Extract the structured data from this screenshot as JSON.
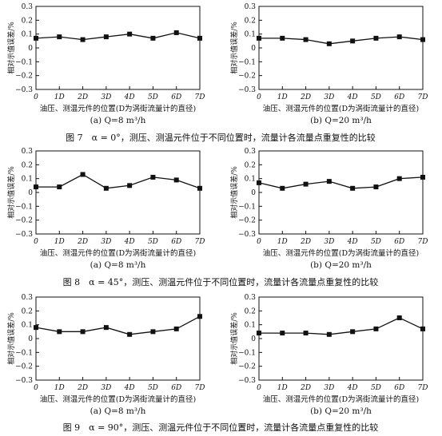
{
  "chart_data": [
    {
      "type": "line",
      "caption": "(a) Q=8 m³/h",
      "categories": [
        "0",
        "1D",
        "2D",
        "3D",
        "4D",
        "5D",
        "6D",
        "7D"
      ],
      "values": [
        0.07,
        0.08,
        0.06,
        0.08,
        0.1,
        0.07,
        0.11,
        0.07
      ],
      "xlabel": "油压、测温元件的位置(D为涡街流量计的直径)",
      "ylabel": "相对示值误差/%",
      "ylim": [
        -0.3,
        0.3
      ],
      "yticks": [
        "0.3",
        "0.2",
        "0.1",
        "0",
        "−0.1",
        "−0.2",
        "−0.3"
      ],
      "grid": false
    },
    {
      "type": "line",
      "caption": "(b) Q=20 m³/h",
      "categories": [
        "0",
        "1D",
        "2D",
        "3D",
        "4D",
        "5D",
        "6D",
        "7D"
      ],
      "values": [
        0.07,
        0.07,
        0.06,
        0.03,
        0.05,
        0.07,
        0.08,
        0.06
      ],
      "xlabel": "油压、测温元件的位置(D为涡街流量计的直径)",
      "ylabel": "相对示值误差/%",
      "ylim": [
        -0.3,
        0.3
      ],
      "yticks": [
        "0.3",
        "0.2",
        "0.1",
        "0",
        "−0.1",
        "−0.2",
        "−0.3"
      ],
      "grid": false
    },
    {
      "type": "line",
      "caption": "(a) Q=8 m³/h",
      "categories": [
        "0",
        "1D",
        "2D",
        "3D",
        "4D",
        "5D",
        "6D",
        "7D"
      ],
      "values": [
        0.04,
        0.04,
        0.13,
        0.03,
        0.05,
        0.11,
        0.09,
        0.03
      ],
      "xlabel": "油压、测温元件的位置(D为涡街流量计的直径)",
      "ylabel": "相对示值误差/%",
      "ylim": [
        -0.3,
        0.3
      ],
      "yticks": [
        "0.3",
        "0.2",
        "0.1",
        "0",
        "−0.1",
        "−0.2",
        "−0.3"
      ],
      "grid": false
    },
    {
      "type": "line",
      "caption": "(b) Q=20 m³/h",
      "categories": [
        "0",
        "1D",
        "2D",
        "3D",
        "4D",
        "5D",
        "6D",
        "7D"
      ],
      "values": [
        0.07,
        0.03,
        0.06,
        0.08,
        0.03,
        0.04,
        0.1,
        0.11
      ],
      "xlabel": "油压、测温元件的位置(D为涡街流量计的直径)",
      "ylabel": "相对示值误差/%",
      "ylim": [
        -0.3,
        0.3
      ],
      "yticks": [
        "0.3",
        "0.2",
        "0.1",
        "0",
        "−0.1",
        "−0.2",
        "−0.3"
      ],
      "grid": false
    },
    {
      "type": "line",
      "caption": "(a) Q=8 m³/h",
      "categories": [
        "0",
        "1D",
        "2D",
        "3D",
        "4D",
        "5D",
        "6D",
        "7D"
      ],
      "values": [
        0.08,
        0.05,
        0.05,
        0.08,
        0.03,
        0.05,
        0.07,
        0.16
      ],
      "xlabel": "油压、测温元件的位置(D为涡街流量计的直径)",
      "ylabel": "相对示值误差/%",
      "ylim": [
        -0.3,
        0.3
      ],
      "yticks": [
        "0.3",
        "0.2",
        "0.1",
        "0",
        "−0.1",
        "−0.2",
        "−0.3"
      ],
      "grid": false
    },
    {
      "type": "line",
      "caption": "(b) Q=20 m³/h",
      "categories": [
        "0",
        "1D",
        "2D",
        "3D",
        "4D",
        "5D",
        "6D",
        "7D"
      ],
      "values": [
        0.04,
        0.04,
        0.04,
        0.03,
        0.05,
        0.07,
        0.15,
        0.07
      ],
      "xlabel": "油压、测温元件的位置(D为涡街流量计的直径)",
      "ylabel": "相对示值误差/%",
      "ylim": [
        -0.3,
        0.3
      ],
      "yticks": [
        "0.3",
        "0.2",
        "0.1",
        "0",
        "−0.1",
        "−0.2",
        "−0.3"
      ],
      "grid": false
    }
  ],
  "figure_captions": [
    "图 7　α = 0°，测压、测温元件位于不同位置时，流量计各流量点重复性的比较",
    "图 8　α = 45°，测压、测温元件位于不同位置时，流量计各流量点重复性的比较",
    "图 9　α = 90°，测压、测温元件位于不同位置时，流量计各流量点重复性的比较"
  ]
}
